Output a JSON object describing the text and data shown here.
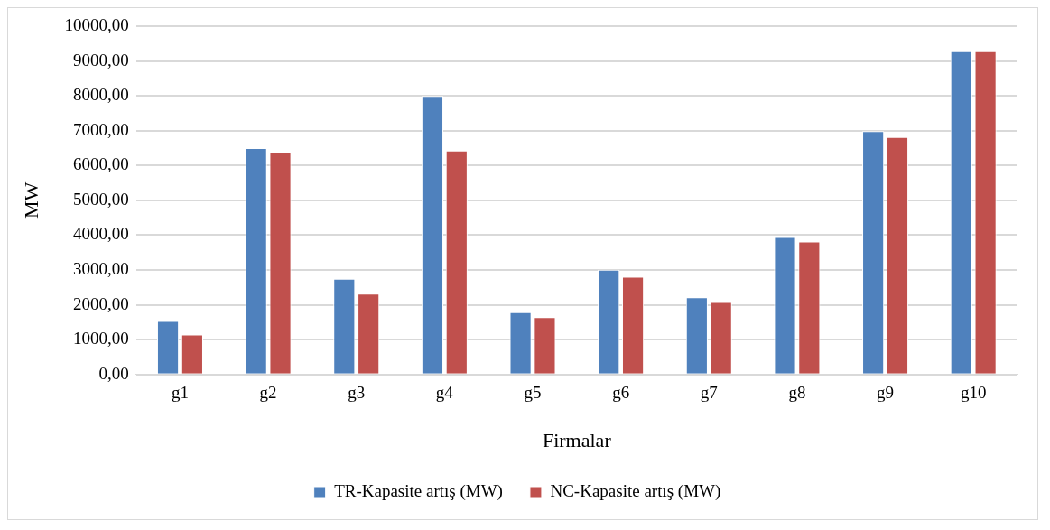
{
  "chart_data": {
    "type": "bar",
    "xlabel": "Firmalar",
    "ylabel": "MW",
    "categories": [
      "g1",
      "g2",
      "g3",
      "g4",
      "g5",
      "g6",
      "g7",
      "g8",
      "g9",
      "g10"
    ],
    "series": [
      {
        "name": "TR-Kapasite artış (MW)",
        "color": "#4f81bd",
        "values": [
          1540,
          6500,
          2750,
          8000,
          1790,
          3010,
          2220,
          3950,
          6990,
          9280
        ]
      },
      {
        "name": "NC-Kapasite artış (MW)",
        "color": "#c0504d",
        "values": [
          1150,
          6370,
          2320,
          6430,
          1650,
          2810,
          2080,
          3820,
          6820,
          9280
        ]
      }
    ],
    "ylim": [
      0,
      10000
    ],
    "yticks": [
      {
        "value": 0,
        "label": "0,00"
      },
      {
        "value": 1000,
        "label": "1000,00"
      },
      {
        "value": 2000,
        "label": "2000,00"
      },
      {
        "value": 3000,
        "label": "3000,00"
      },
      {
        "value": 4000,
        "label": "4000,00"
      },
      {
        "value": 5000,
        "label": "5000,00"
      },
      {
        "value": 6000,
        "label": "6000,00"
      },
      {
        "value": 7000,
        "label": "7000,00"
      },
      {
        "value": 8000,
        "label": "8000,00"
      },
      {
        "value": 9000,
        "label": "9000,00"
      },
      {
        "value": 10000,
        "label": "10000,00"
      }
    ],
    "grid": "y",
    "legend": "bottom"
  }
}
